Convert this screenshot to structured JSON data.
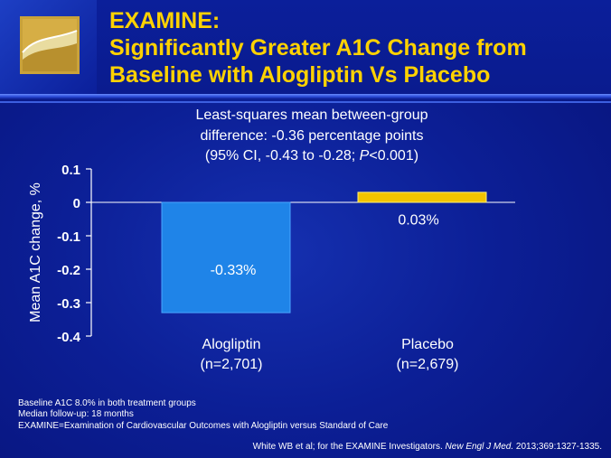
{
  "slide": {
    "title_line1": "EXAMINE:",
    "title_line2": "Significantly Greater A1C Change from",
    "title_line3": "Baseline with Alogliptin Vs Placebo",
    "subtitle_line1": "Least-squares mean between-group",
    "subtitle_line2": "difference: -0.36 percentage points",
    "subtitle_line3_pre": "(95% CI, -0.43 to -0.28; ",
    "subtitle_line3_p": "P",
    "subtitle_line3_post": "<0.001)",
    "footnote_line1": "Baseline A1C 8.0% in both treatment groups",
    "footnote_line2": "Median follow-up: 18 months",
    "footnote_line3": "EXAMINE=Examination of Cardiovascular Outcomes with Alogliptin versus Standard of Care",
    "citation_pre": "White WB et al; for the EXAMINE Investigators. ",
    "citation_journal": "New Engl J Med.",
    "citation_post": " 2013;369:1327-1335."
  },
  "colors": {
    "background": "#0a1a8c",
    "title": "#ffd200",
    "alogliptin_bar": "#1f84e8",
    "placebo_bar": "#f2c400",
    "text": "#ffffff"
  },
  "chart_data": {
    "type": "bar",
    "categories": [
      "Alogliptin",
      "Placebo"
    ],
    "category_sublabels": [
      "(n=2,701)",
      "(n=2,679)"
    ],
    "values": [
      -0.33,
      0.03
    ],
    "data_labels": [
      "-0.33%",
      "0.03%"
    ],
    "ylabel": "Mean A1C change, %",
    "ylim": [
      -0.4,
      0.1
    ],
    "yticks": [
      0.1,
      0,
      -0.1,
      -0.2,
      -0.3,
      -0.4
    ],
    "ytick_labels": [
      "0.1",
      "0",
      "-0.1",
      "-0.2",
      "-0.3",
      "-0.4"
    ],
    "grid": false,
    "legend": "none"
  }
}
